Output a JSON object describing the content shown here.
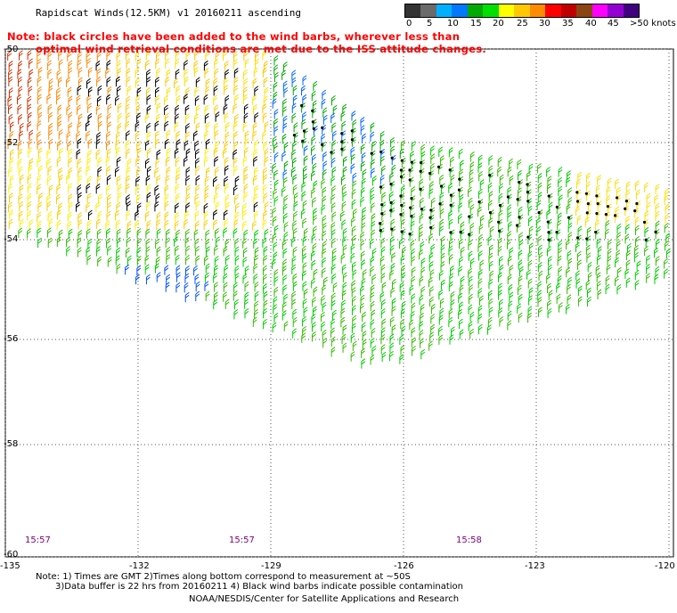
{
  "title": "Rapidscat Winds(12.5KM) v1 20160211 ascending",
  "note_lines": [
    "Note: black circles have been added to the wind barbs, wherever less than",
    "optimal wind retrieval conditions are met due to the ISS attitude changes."
  ],
  "legend": {
    "labels": [
      "0",
      "5",
      "10",
      "15",
      "20",
      "25",
      "30",
      "35",
      "40",
      "45",
      ">50 knots"
    ],
    "colors": [
      "#333333",
      "#6a6a6a",
      "#00b0ff",
      "#0078ff",
      "#00aa00",
      "#00e000",
      "#ffff00",
      "#ffc800",
      "#ff8c00",
      "#ff0000",
      "#c00000",
      "#8b4513",
      "#ff00ff",
      "#9400d3",
      "#400080"
    ]
  },
  "axes": {
    "longitudes": [
      "-135",
      "-132",
      "-129",
      "-126",
      "-123",
      "-120"
    ],
    "latitudes": [
      "-50",
      "-52",
      "-54",
      "-56",
      "-58",
      "-60"
    ]
  },
  "times": [
    "15:57",
    "15:57",
    "15:58"
  ],
  "footer": {
    "line1": "Note: 1) Times are GMT 2)Times along bottom correspond to measurement at ~50S",
    "line2": "3)Data buffer is 22 hrs from 20160211 4) Black wind barbs indicate possible contamination",
    "line3": "NOAA/NESDIS/Center for Satellite Applications and Research"
  }
}
